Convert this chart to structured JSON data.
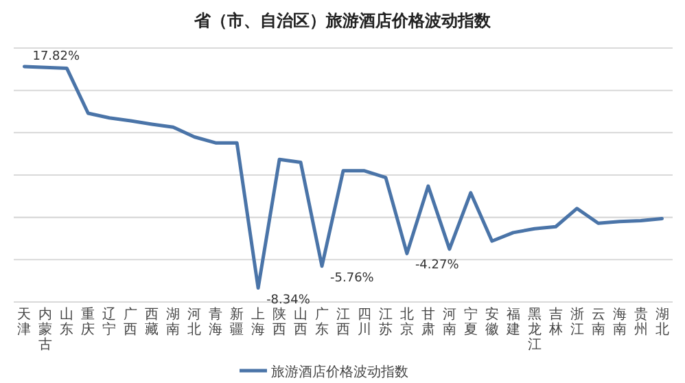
{
  "chart_data": {
    "type": "line",
    "title": "省（市、自治区）旅游酒店价格波动指数",
    "categories": [
      "天津",
      "内蒙古",
      "山东",
      "重庆",
      "辽宁",
      "广西",
      "西藏",
      "湖南",
      "河北",
      "青海",
      "新疆",
      "上海",
      "陕西",
      "山西",
      "广东",
      "江西",
      "四川",
      "江苏",
      "北京",
      "甘肃",
      "河南",
      "宁夏",
      "安徽",
      "福建",
      "黑龙江",
      "吉林",
      "浙江",
      "云南",
      "海南",
      "贵州",
      "湖北"
    ],
    "series": [
      {
        "name": "旅游酒店价格波动指数",
        "color": "#4a74a8",
        "values": [
          17.82,
          17.7,
          17.6,
          12.3,
          11.75,
          11.4,
          11.0,
          10.65,
          9.5,
          8.8,
          8.8,
          -8.34,
          6.85,
          6.5,
          -5.76,
          5.5,
          5.5,
          4.7,
          -4.27,
          3.7,
          -3.75,
          2.9,
          -2.8,
          -1.8,
          -1.35,
          -1.1,
          1.05,
          -0.7,
          -0.5,
          -0.4,
          -0.15
        ],
        "value_labels": [
          "17.82%",
          null,
          null,
          null,
          null,
          null,
          null,
          null,
          null,
          null,
          null,
          "-8.34%",
          null,
          null,
          "-5.76%",
          null,
          null,
          null,
          "-4.27%",
          null,
          null,
          null,
          null,
          null,
          null,
          null,
          null,
          null,
          null,
          null,
          null
        ]
      }
    ],
    "ylim": [
      -10,
      20
    ],
    "yticks": [
      {
        "value": -10,
        "label": null
      },
      {
        "value": -5,
        "label": null
      },
      {
        "value": 0,
        "label": null
      },
      {
        "value": 5,
        "label": null
      },
      {
        "value": 10,
        "label": null
      },
      {
        "value": 15,
        "label": null
      },
      {
        "value": 20,
        "label": null
      }
    ],
    "tick_labels": "x",
    "grid": "y",
    "legend": "bottom",
    "marker": "none",
    "line_style": "solid"
  }
}
